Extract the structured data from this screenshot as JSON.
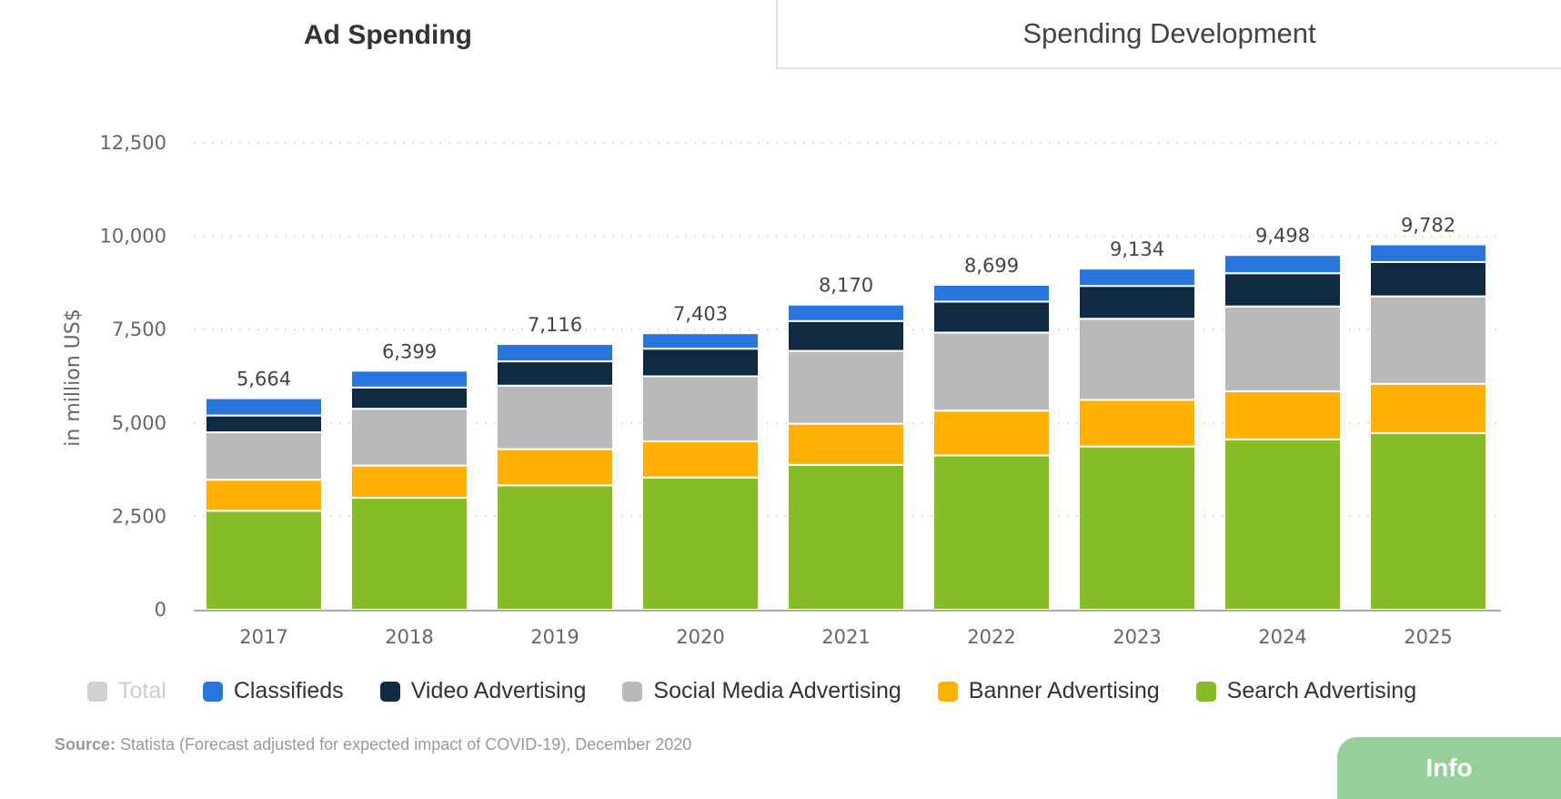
{
  "tabs": {
    "active": "Ad Spending",
    "inactive": "Spending Development"
  },
  "chart_data": {
    "type": "bar",
    "stacked": true,
    "title": "",
    "xlabel": "",
    "ylabel": "in million US$",
    "ylim": [
      0,
      12500
    ],
    "yticks": [
      0,
      2500,
      5000,
      7500,
      10000,
      12500
    ],
    "ytick_labels": [
      "0",
      "2,500",
      "5,000",
      "7,500",
      "10,000",
      "12,500"
    ],
    "grid": true,
    "legend_position": "bottom",
    "categories": [
      "2017",
      "2018",
      "2019",
      "2020",
      "2021",
      "2022",
      "2023",
      "2024",
      "2025"
    ],
    "totals": [
      5664,
      6399,
      7116,
      7403,
      8170,
      8699,
      9134,
      9498,
      9782
    ],
    "total_labels": [
      "5,664",
      "6,399",
      "7,116",
      "7,403",
      "8,170",
      "8,699",
      "9,134",
      "9,498",
      "9,782"
    ],
    "series": [
      {
        "name": "Search Advertising",
        "color": "#86bc25",
        "values": [
          2650,
          3000,
          3330,
          3540,
          3880,
          4130,
          4370,
          4560,
          4730
        ]
      },
      {
        "name": "Banner Advertising",
        "color": "#ffb000",
        "values": [
          830,
          860,
          970,
          970,
          1100,
          1200,
          1250,
          1290,
          1320
        ]
      },
      {
        "name": "Social Media Advertising",
        "color": "#b9b9b9",
        "values": [
          1270,
          1520,
          1700,
          1740,
          1950,
          2090,
          2170,
          2270,
          2340
        ]
      },
      {
        "name": "Video Advertising",
        "color": "#0f2a42",
        "values": [
          450,
          570,
          650,
          740,
          800,
          830,
          880,
          890,
          920
        ]
      },
      {
        "name": "Classifieds",
        "color": "#2876dd",
        "values": [
          464,
          449,
          466,
          413,
          440,
          449,
          464,
          488,
          472
        ]
      }
    ]
  },
  "legend": [
    {
      "label": "Total",
      "color": "#d0d0d0",
      "disabled": true
    },
    {
      "label": "Classifieds",
      "color": "#2876dd",
      "disabled": false
    },
    {
      "label": "Video Advertising",
      "color": "#0f2a42",
      "disabled": false
    },
    {
      "label": "Social Media Advertising",
      "color": "#b9b9b9",
      "disabled": false
    },
    {
      "label": "Banner Advertising",
      "color": "#ffb000",
      "disabled": false
    },
    {
      "label": "Search Advertising",
      "color": "#86bc25",
      "disabled": false
    }
  ],
  "source": {
    "prefix": "Source:",
    "text": " Statista (Forecast adjusted for expected impact of COVID-19), December 2020"
  },
  "info_button": "Info"
}
